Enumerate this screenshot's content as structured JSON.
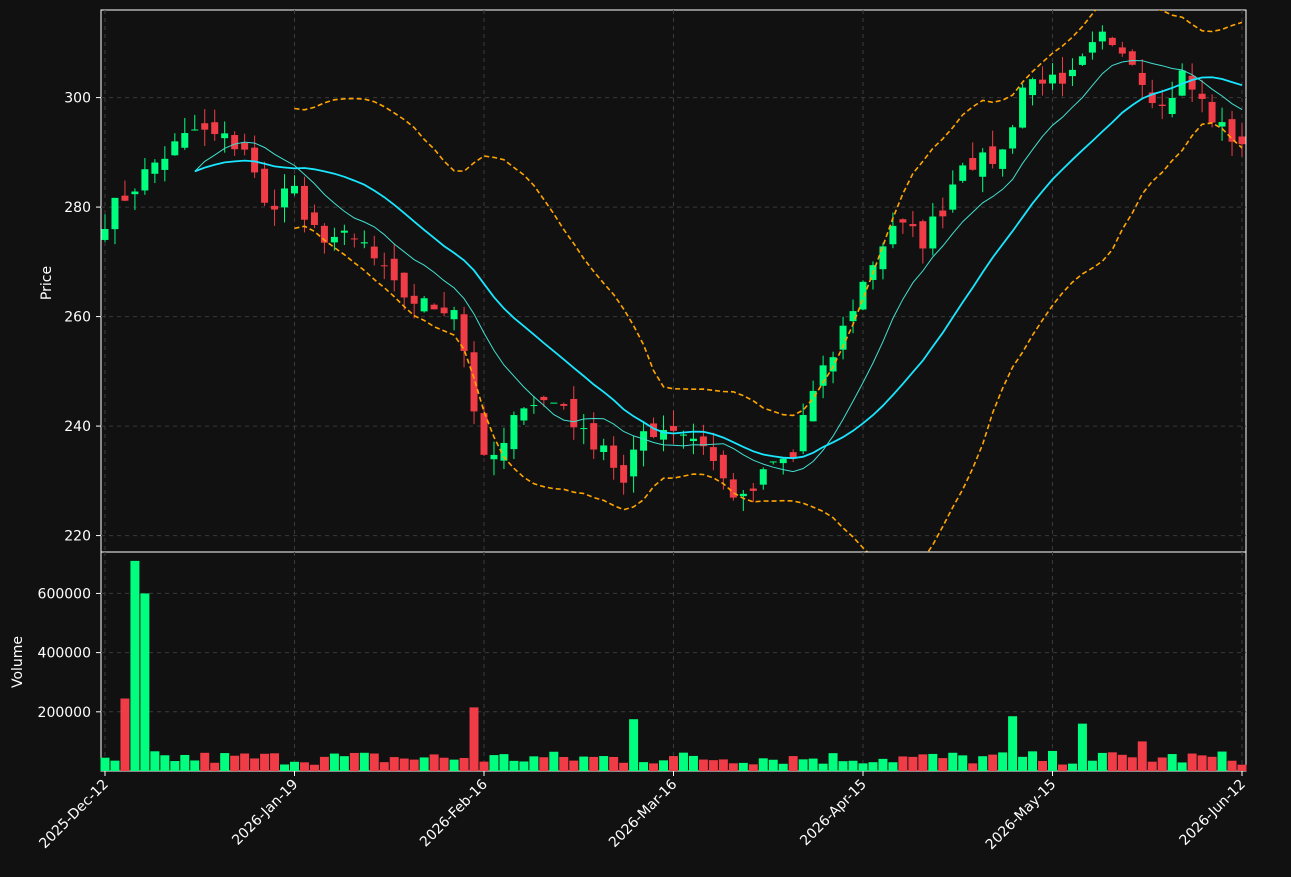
{
  "colors": {
    "background": "#111111",
    "up": "#00ff7f",
    "down": "#f03c46",
    "grid": "#3a3a3a",
    "axis_text": "#ffffff",
    "bollinger": "#ffa500",
    "ma_slow": "#19e6ff",
    "ma_fast": "#40e0d0"
  },
  "chart_data": [
    {
      "type": "candlestick",
      "panel": "price",
      "ylabel": "Price",
      "ylim": [
        217,
        316
      ],
      "yticks": [
        220,
        240,
        260,
        280,
        300
      ],
      "grid": true,
      "x_tick_labels": [
        "2025-Dec-12",
        "2026-Jan-19",
        "2026-Feb-16",
        "2026-Mar-16",
        "2026-Apr-15",
        "2026-May-15",
        "2026-Jun-12"
      ],
      "x_tick_index": [
        0,
        19,
        38,
        57,
        76,
        95,
        114
      ],
      "n_bars": 115,
      "anchors": [
        [
          0,
          278
        ],
        [
          5,
          288
        ],
        [
          9,
          294
        ],
        [
          14,
          291
        ],
        [
          16,
          280
        ],
        [
          19,
          284
        ],
        [
          20,
          276
        ],
        [
          26,
          273
        ],
        [
          29,
          265
        ],
        [
          32,
          262
        ],
        [
          35,
          262
        ],
        [
          36,
          254
        ],
        [
          38,
          233
        ],
        [
          40,
          236
        ],
        [
          42,
          245
        ],
        [
          46,
          244
        ],
        [
          48,
          238
        ],
        [
          50,
          237
        ],
        [
          52,
          229
        ],
        [
          54,
          239
        ],
        [
          57,
          240
        ],
        [
          60,
          237
        ],
        [
          62,
          230
        ],
        [
          64,
          226
        ],
        [
          67,
          233
        ],
        [
          69,
          234
        ],
        [
          70,
          242
        ],
        [
          73,
          253
        ],
        [
          75,
          262
        ],
        [
          77,
          270
        ],
        [
          79,
          277
        ],
        [
          82,
          274
        ],
        [
          84,
          280
        ],
        [
          86,
          289
        ],
        [
          88,
          288
        ],
        [
          90,
          290
        ],
        [
          92,
          302
        ],
        [
          94,
          304
        ],
        [
          96,
          301
        ],
        [
          98,
          306
        ],
        [
          100,
          311
        ],
        [
          102,
          310
        ],
        [
          104,
          304
        ],
        [
          106,
          298
        ],
        [
          108,
          304
        ],
        [
          110,
          299
        ],
        [
          112,
          294
        ],
        [
          114,
          292
        ]
      ],
      "bollinger_start_index": 19,
      "ma_slow_start_index": 9,
      "ma_fast_start_index": 9,
      "series": [
        {
          "name": "",
          "kind": "ohlc"
        },
        {
          "name": "",
          "kind": "moving_average_fast"
        },
        {
          "name": "",
          "kind": "moving_average_slow"
        },
        {
          "name": "",
          "kind": "bollinger_upper"
        },
        {
          "name": "",
          "kind": "bollinger_lower"
        }
      ]
    },
    {
      "type": "bar",
      "panel": "volume",
      "ylabel": "Volume",
      "ylim": [
        0,
        740000
      ],
      "yticks": [
        200000,
        400000,
        600000
      ],
      "ytick_labels": [
        "200000",
        "400000",
        "600000"
      ],
      "grid": true,
      "volume_overrides": [
        [
          0,
          45000
        ],
        [
          1,
          35000
        ],
        [
          2,
          245000
        ],
        [
          3,
          710000
        ],
        [
          4,
          600000
        ],
        [
          37,
          215000
        ],
        [
          53,
          175000
        ],
        [
          91,
          185000
        ],
        [
          98,
          160000
        ],
        [
          104,
          100000
        ]
      ],
      "volume_base": 40000
    }
  ]
}
